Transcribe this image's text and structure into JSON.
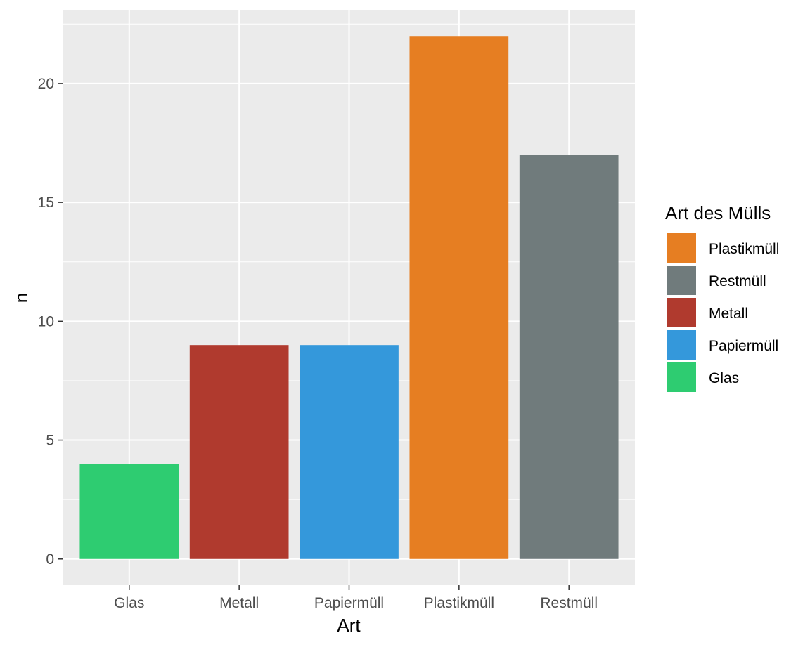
{
  "chart_data": {
    "type": "bar",
    "categories": [
      "Glas",
      "Metall",
      "Papiermüll",
      "Plastikmüll",
      "Restmüll"
    ],
    "values": [
      4,
      9,
      9,
      22,
      17
    ],
    "colors": [
      "#2ecc71",
      "#b03a2e",
      "#3498db",
      "#e67e22",
      "#707b7c"
    ],
    "xlabel": "Art",
    "ylabel": "n",
    "ylim": [
      -1.1,
      23.1
    ],
    "yticks": [
      0,
      5,
      10,
      15,
      20
    ],
    "grid": true,
    "legend": {
      "title": "Art des Mülls",
      "placement": "right",
      "items": [
        {
          "label": "Plastikmüll",
          "color": "#e67e22"
        },
        {
          "label": "Restmüll",
          "color": "#707b7c"
        },
        {
          "label": "Metall",
          "color": "#b03a2e"
        },
        {
          "label": "Papiermüll",
          "color": "#3498db"
        },
        {
          "label": "Glas",
          "color": "#2ecc71"
        }
      ]
    }
  }
}
